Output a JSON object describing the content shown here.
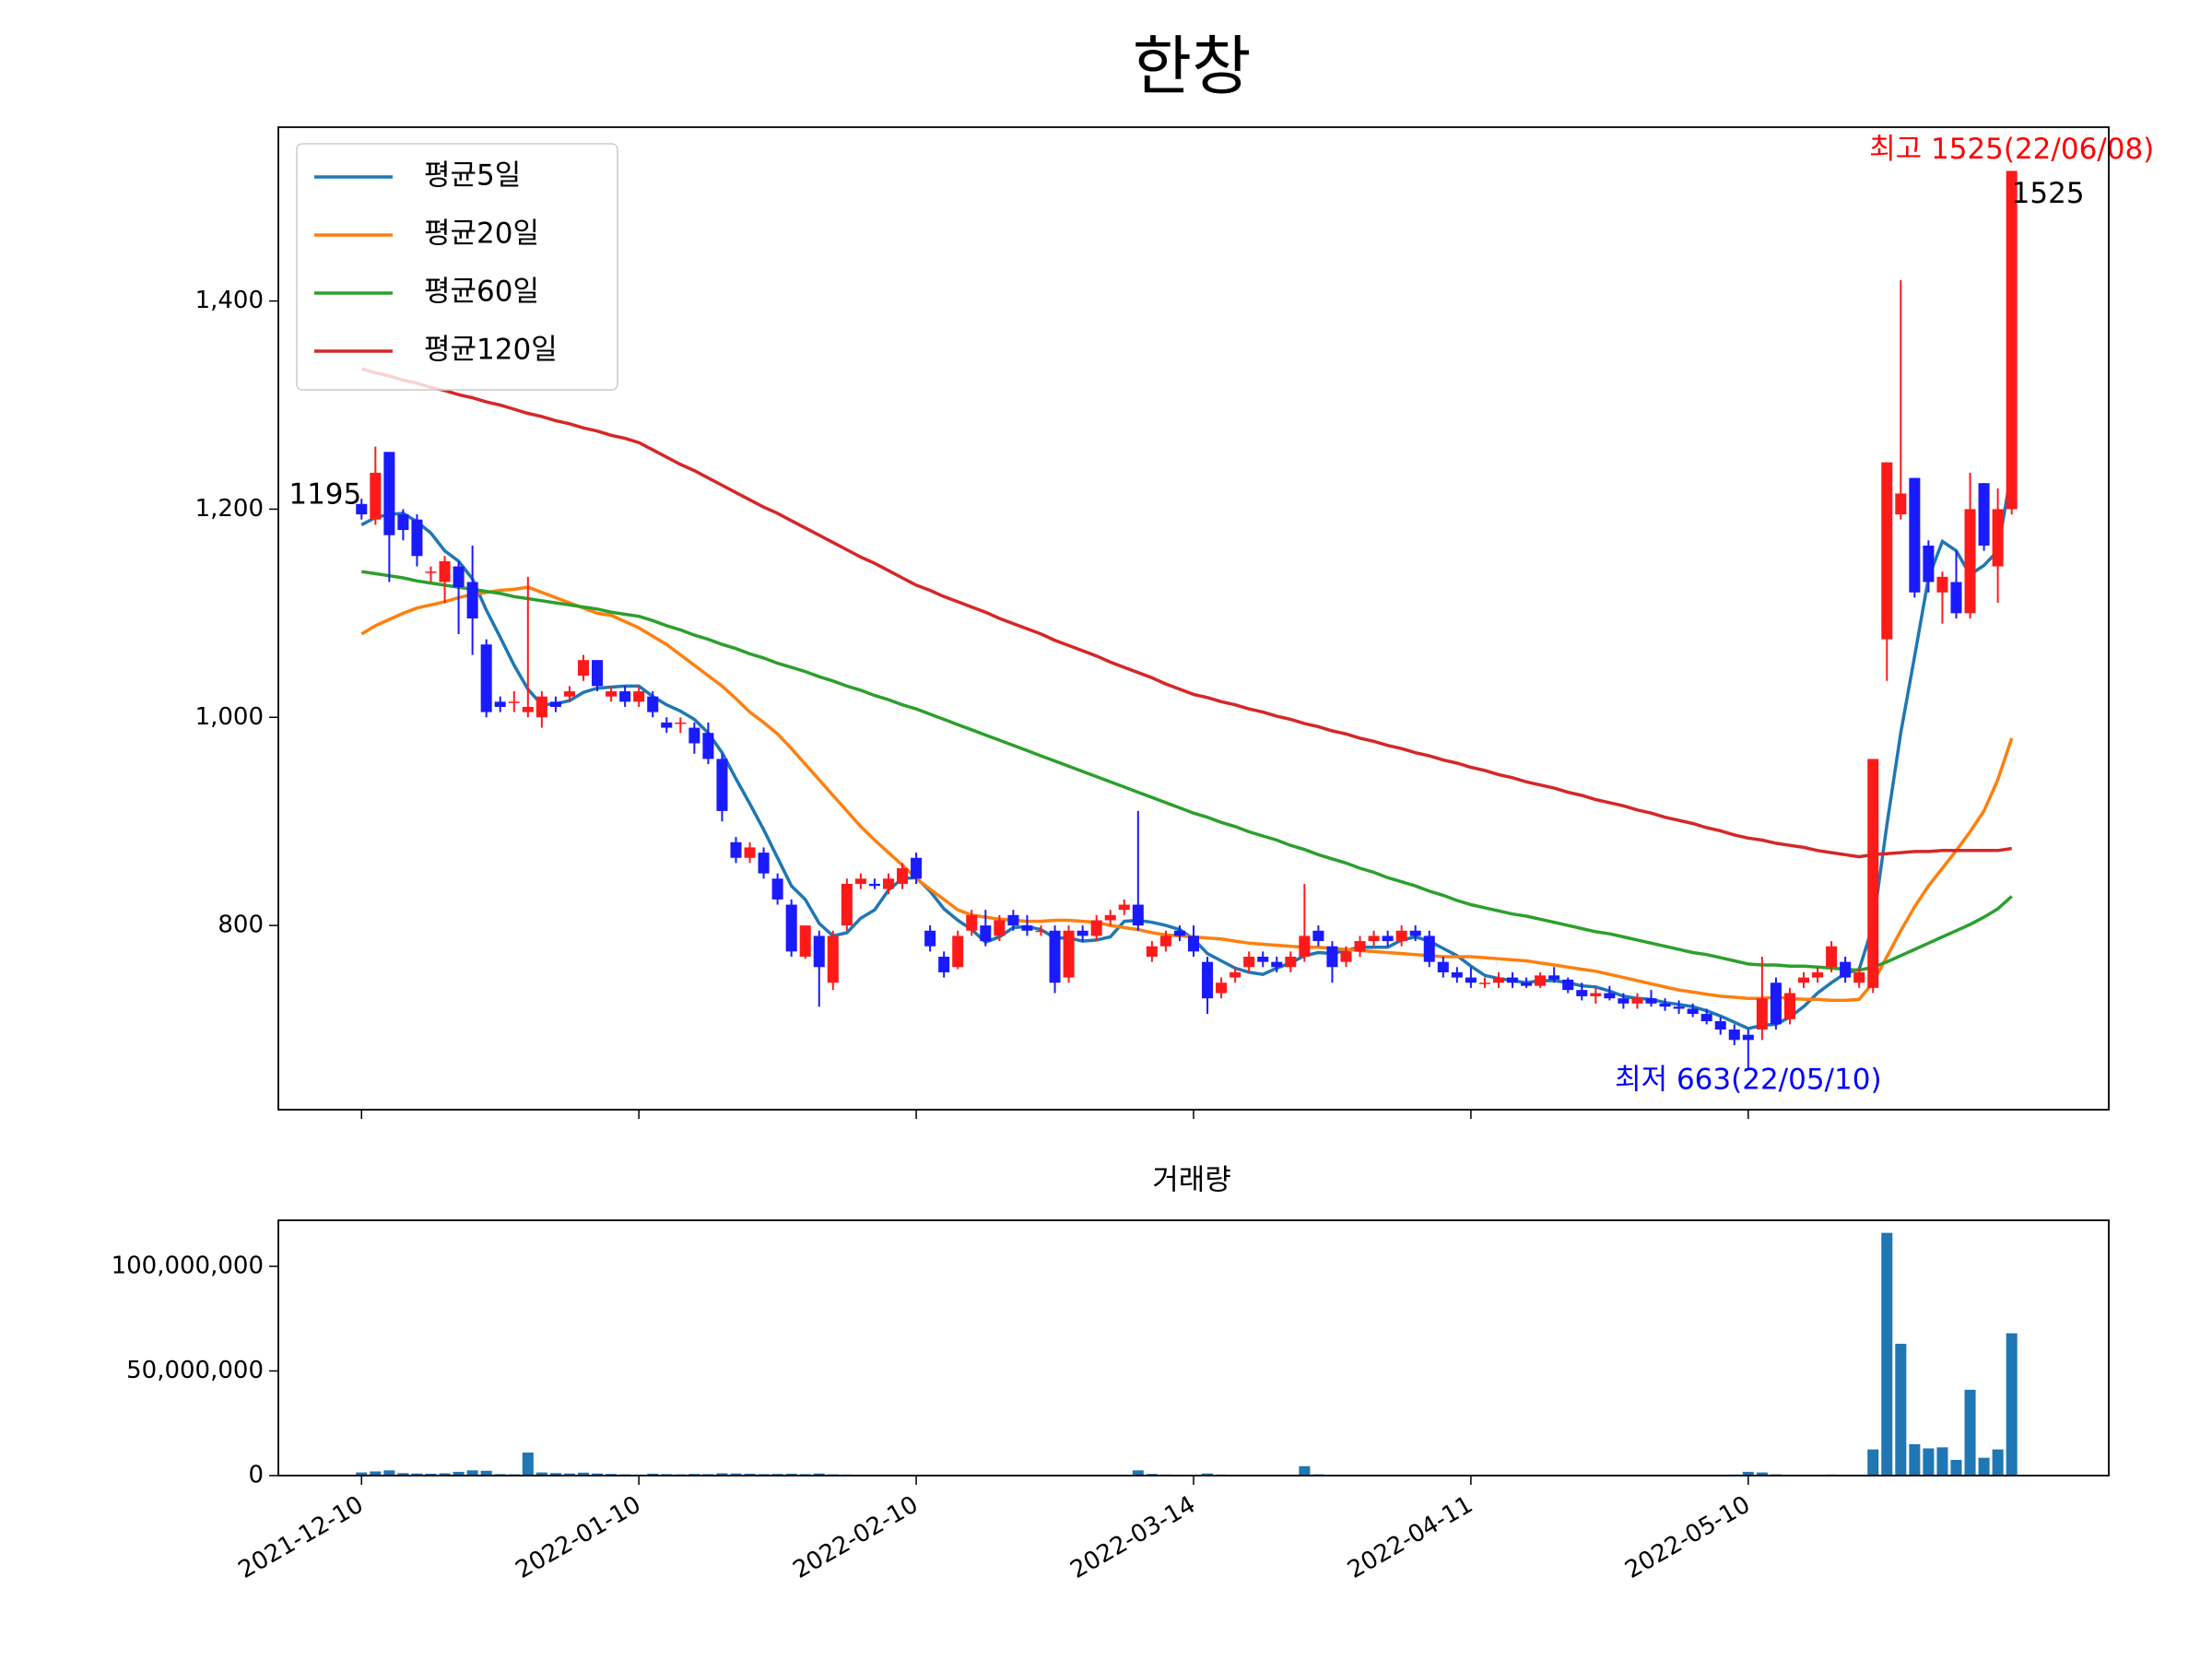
{
  "chart_data": {
    "type": "candlestick",
    "title": "한창",
    "categories": [
      "2021-12-10",
      null,
      null,
      null,
      null,
      null,
      null,
      null,
      null,
      null,
      null,
      null,
      null,
      null,
      null,
      null,
      null,
      null,
      null,
      null,
      "2022-01-10",
      null,
      null,
      null,
      null,
      null,
      null,
      null,
      null,
      null,
      null,
      null,
      null,
      null,
      null,
      null,
      null,
      null,
      null,
      null,
      "2022-02-10",
      null,
      null,
      null,
      null,
      null,
      null,
      null,
      null,
      null,
      null,
      null,
      null,
      null,
      null,
      null,
      null,
      null,
      null,
      null,
      "2022-03-14",
      null,
      null,
      null,
      null,
      null,
      null,
      null,
      null,
      null,
      null,
      null,
      null,
      null,
      null,
      null,
      null,
      null,
      null,
      null,
      "2022-04-11",
      null,
      null,
      null,
      null,
      null,
      null,
      null,
      null,
      null,
      null,
      null,
      null,
      null,
      null,
      null,
      null,
      null,
      null,
      null,
      "2022-05-10",
      null,
      null,
      null,
      null,
      null,
      null,
      null,
      null,
      null,
      null,
      null,
      null,
      null,
      null,
      null,
      null,
      null,
      null,
      null
    ],
    "open": [
      1205,
      1190,
      1255,
      1195,
      1190,
      1140,
      1130,
      1145,
      1130,
      1070,
      1015,
      1015,
      1005,
      1000,
      1015,
      1020,
      1040,
      1055,
      1020,
      1025,
      1015,
      1020,
      995,
      995,
      990,
      985,
      960,
      880,
      865,
      870,
      845,
      820,
      770,
      790,
      745,
      800,
      840,
      840,
      835,
      840,
      865,
      795,
      770,
      760,
      795,
      800,
      790,
      810,
      800,
      795,
      795,
      750,
      795,
      790,
      805,
      815,
      820,
      770,
      780,
      795,
      790,
      765,
      735,
      750,
      760,
      770,
      765,
      760,
      770,
      795,
      780,
      765,
      775,
      785,
      790,
      785,
      795,
      790,
      765,
      755,
      750,
      745,
      745,
      750,
      745,
      742,
      752,
      748,
      738,
      732,
      735,
      730,
      725,
      730,
      725,
      722,
      720,
      715,
      708,
      700,
      695,
      700,
      745,
      710,
      745,
      750,
      760,
      765,
      745,
      740,
      1075,
      1195,
      1230,
      1165,
      1120,
      1130,
      1100,
      1225,
      1145,
      1200
    ],
    "high": [
      1210,
      1260,
      1255,
      1200,
      1195,
      1145,
      1155,
      1150,
      1165,
      1075,
      1020,
      1025,
      1135,
      1025,
      1020,
      1030,
      1060,
      1055,
      1030,
      1030,
      1030,
      1025,
      1000,
      1000,
      995,
      995,
      965,
      885,
      880,
      875,
      850,
      825,
      800,
      795,
      795,
      845,
      850,
      845,
      850,
      860,
      870,
      800,
      775,
      795,
      815,
      815,
      810,
      815,
      810,
      800,
      800,
      800,
      800,
      810,
      815,
      825,
      910,
      785,
      795,
      800,
      800,
      770,
      750,
      760,
      775,
      775,
      770,
      775,
      840,
      800,
      785,
      780,
      790,
      795,
      795,
      800,
      800,
      795,
      770,
      760,
      760,
      750,
      755,
      755,
      750,
      755,
      760,
      750,
      745,
      740,
      742,
      735,
      735,
      738,
      730,
      728,
      725,
      720,
      712,
      705,
      700,
      770,
      750,
      740,
      755,
      760,
      785,
      770,
      760,
      960,
      1245,
      1420,
      1230,
      1170,
      1140,
      1160,
      1235,
      1225,
      1220,
      1525
    ],
    "low": [
      1190,
      1185,
      1130,
      1170,
      1145,
      1130,
      1110,
      1080,
      1060,
      1000,
      1005,
      1005,
      1000,
      990,
      1005,
      1015,
      1035,
      1025,
      1015,
      1010,
      1010,
      1000,
      985,
      985,
      965,
      955,
      900,
      860,
      860,
      845,
      820,
      770,
      768,
      722,
      738,
      795,
      835,
      835,
      830,
      835,
      840,
      775,
      750,
      758,
      790,
      780,
      785,
      795,
      790,
      790,
      735,
      745,
      785,
      785,
      800,
      810,
      795,
      765,
      775,
      785,
      770,
      715,
      730,
      745,
      755,
      760,
      755,
      755,
      765,
      780,
      745,
      760,
      770,
      780,
      780,
      780,
      785,
      760,
      750,
      745,
      740,
      740,
      740,
      740,
      740,
      740,
      745,
      735,
      728,
      725,
      728,
      720,
      720,
      722,
      718,
      715,
      712,
      705,
      695,
      685,
      663,
      690,
      700,
      705,
      740,
      745,
      755,
      745,
      740,
      735,
      1035,
      1190,
      1115,
      1120,
      1090,
      1095,
      1095,
      1160,
      1110,
      1195
    ],
    "close": [
      1195,
      1235,
      1175,
      1180,
      1155,
      1140,
      1150,
      1125,
      1095,
      1005,
      1010,
      1015,
      1010,
      1020,
      1010,
      1025,
      1055,
      1030,
      1025,
      1015,
      1025,
      1005,
      990,
      995,
      975,
      960,
      910,
      865,
      875,
      850,
      825,
      775,
      800,
      760,
      790,
      840,
      845,
      838,
      845,
      855,
      845,
      780,
      755,
      790,
      810,
      785,
      805,
      800,
      795,
      795,
      745,
      795,
      790,
      805,
      810,
      820,
      800,
      780,
      790,
      790,
      775,
      730,
      745,
      755,
      770,
      765,
      760,
      770,
      790,
      785,
      760,
      775,
      785,
      790,
      785,
      795,
      790,
      765,
      755,
      750,
      745,
      745,
      750,
      745,
      742,
      752,
      748,
      738,
      732,
      735,
      730,
      725,
      730,
      725,
      722,
      720,
      715,
      708,
      700,
      690,
      690,
      730,
      705,
      735,
      750,
      755,
      780,
      750,
      755,
      960,
      1245,
      1215,
      1120,
      1130,
      1135,
      1100,
      1200,
      1165,
      1200,
      1525
    ],
    "up_color": "#ff1a1a",
    "down_color": "#1a1aff",
    "ylim": [
      623,
      1567
    ],
    "yticks": [
      800,
      {
        "value": 1000,
        "label": "1,000"
      },
      {
        "value": 1200,
        "label": "1,200"
      },
      {
        "value": 1400,
        "label": "1,400"
      }
    ],
    "legend": "upper left",
    "series": [
      {
        "name": "평균5일",
        "color": "#1f77b4",
        "values": [
          1185,
          1192,
          1195,
          1196,
          1188,
          1177,
          1160,
          1150,
          1133,
          1103,
          1077,
          1050,
          1027,
          1012,
          1013,
          1016,
          1024,
          1028,
          1029,
          1030,
          1030,
          1020,
          1012,
          1006,
          998,
          985,
          966,
          941,
          917,
          892,
          865,
          838,
          825,
          802,
          790,
          793,
          807,
          815,
          834,
          845,
          846,
          833,
          816,
          805,
          796,
          784,
          789,
          798,
          799,
          796,
          788,
          788,
          785,
          786,
          789,
          804,
          805,
          803,
          800,
          796,
          787,
          773,
          766,
          759,
          755,
          753,
          759,
          764,
          771,
          774,
          773,
          776,
          779,
          779,
          779,
          786,
          789,
          785,
          778,
          771,
          761,
          752,
          749,
          747,
          745,
          747,
          747,
          745,
          742,
          741,
          737,
          732,
          730,
          729,
          726,
          724,
          722,
          718,
          713,
          707,
          701,
          704,
          705,
          712,
          722,
          735,
          745,
          754,
          758,
          800,
          897,
          985,
          1059,
          1134,
          1169,
          1160,
          1137,
          1146,
          1160,
          1238
        ]
      },
      {
        "name": "평균20일",
        "color": "#ff7f0e",
        "values": [
          1080,
          1088,
          1094,
          1100,
          1105,
          1108,
          1111,
          1115,
          1118,
          1120,
          1122,
          1123,
          1125,
          1120,
          1115,
          1110,
          1105,
          1100,
          1098,
          1092,
          1086,
          1078,
          1070,
          1060,
          1050,
          1040,
          1030,
          1018,
          1005,
          995,
          984,
          970,
          955,
          940,
          925,
          910,
          895,
          882,
          870,
          858,
          845,
          835,
          825,
          815,
          810,
          808,
          806,
          805,
          804,
          804,
          805,
          805,
          804,
          803,
          800,
          798,
          796,
          793,
          791,
          790,
          789,
          788,
          787,
          785,
          783,
          782,
          781,
          780,
          779,
          779,
          778,
          777,
          776,
          775,
          774,
          773,
          772,
          771,
          770,
          770,
          770,
          769,
          768,
          767,
          766,
          764,
          762,
          760,
          758,
          756,
          753,
          750,
          747,
          744,
          741,
          738,
          736,
          734,
          732,
          731,
          730,
          730,
          731,
          730,
          729,
          729,
          728,
          728,
          729,
          745,
          770,
          795,
          818,
          838,
          855,
          872,
          890,
          910,
          940,
          980
        ]
      },
      {
        "name": "평균60일",
        "color": "#2ca02c",
        "values": [
          1140,
          1138,
          1136,
          1134,
          1131,
          1129,
          1127,
          1125,
          1123,
          1121,
          1119,
          1116,
          1114,
          1112,
          1110,
          1108,
          1106,
          1104,
          1101,
          1099,
          1097,
          1093,
          1088,
          1084,
          1079,
          1075,
          1070,
          1066,
          1061,
          1057,
          1052,
          1048,
          1044,
          1039,
          1035,
          1030,
          1026,
          1021,
          1017,
          1012,
          1008,
          1003,
          998,
          993,
          988,
          983,
          978,
          973,
          968,
          963,
          958,
          953,
          948,
          943,
          938,
          933,
          928,
          923,
          918,
          913,
          908,
          904,
          899,
          895,
          890,
          886,
          882,
          877,
          873,
          868,
          864,
          860,
          855,
          851,
          846,
          842,
          838,
          833,
          829,
          824,
          820,
          817,
          814,
          811,
          809,
          806,
          803,
          800,
          797,
          794,
          792,
          789,
          786,
          783,
          780,
          777,
          774,
          772,
          769,
          766,
          763,
          762,
          762,
          761,
          761,
          760,
          759,
          758,
          757,
          760,
          765,
          771,
          777,
          783,
          789,
          795,
          801,
          808,
          816,
          828
        ]
      },
      {
        "name": "평균120일",
        "color": "#d62728",
        "values": [
          1335,
          1331,
          1328,
          1324,
          1321,
          1317,
          1314,
          1310,
          1307,
          1303,
          1300,
          1296,
          1292,
          1289,
          1285,
          1282,
          1278,
          1275,
          1271,
          1268,
          1264,
          1257,
          1250,
          1243,
          1237,
          1230,
          1223,
          1216,
          1209,
          1202,
          1196,
          1189,
          1182,
          1175,
          1168,
          1161,
          1154,
          1148,
          1141,
          1134,
          1127,
          1122,
          1116,
          1111,
          1106,
          1101,
          1095,
          1090,
          1085,
          1080,
          1074,
          1069,
          1064,
          1059,
          1053,
          1048,
          1043,
          1038,
          1032,
          1027,
          1022,
          1019,
          1015,
          1012,
          1008,
          1005,
          1001,
          998,
          994,
          991,
          987,
          984,
          980,
          977,
          973,
          970,
          966,
          963,
          959,
          956,
          952,
          949,
          945,
          942,
          938,
          935,
          932,
          928,
          925,
          921,
          918,
          915,
          911,
          908,
          904,
          901,
          898,
          894,
          891,
          887,
          884,
          882,
          879,
          877,
          875,
          872,
          870,
          868,
          866,
          868,
          869,
          870,
          871,
          871,
          872,
          872,
          872,
          872,
          872,
          874
        ]
      }
    ],
    "annotations": {
      "max": "최고 1525(22/06/08)",
      "min": "최저 663(22/05/10)",
      "max_color": "#ff0000",
      "min_color": "#0000ff"
    },
    "volume": {
      "type": "bar",
      "title": "거래량",
      "color": "#1f77b4",
      "values": [
        1500000,
        2000000,
        2500000,
        1200000,
        1000000,
        900000,
        1100000,
        1800000,
        2500000,
        2300000,
        700000,
        600000,
        11000000,
        1500000,
        1200000,
        1000000,
        1400000,
        1000000,
        800000,
        600000,
        500000,
        900000,
        700000,
        600000,
        800000,
        700000,
        1100000,
        1000000,
        900000,
        700000,
        800000,
        900000,
        700000,
        1000000,
        600000,
        500000,
        400000,
        400000,
        300000,
        300000,
        400000,
        300000,
        300000,
        300000,
        400000,
        300000,
        300000,
        300000,
        300000,
        300000,
        400000,
        300000,
        300000,
        300000,
        300000,
        300000,
        2500000,
        800000,
        500000,
        400000,
        400000,
        1000000,
        500000,
        400000,
        300000,
        300000,
        300000,
        300000,
        4500000,
        600000,
        400000,
        300000,
        300000,
        300000,
        300000,
        300000,
        300000,
        300000,
        300000,
        300000,
        300000,
        300000,
        300000,
        300000,
        300000,
        300000,
        300000,
        300000,
        300000,
        300000,
        300000,
        300000,
        300000,
        300000,
        300000,
        300000,
        300000,
        300000,
        400000,
        500000,
        1800000,
        1500000,
        600000,
        400000,
        400000,
        400000,
        500000,
        400000,
        400000,
        12500000,
        116000000,
        63000000,
        15000000,
        13000000,
        13500000,
        7500000,
        41000000,
        8500000,
        12500000,
        68000000
      ],
      "ylim": [
        0,
        122000000
      ],
      "yticks": [
        0,
        {
          "value": 50000000,
          "label": "50,000,000"
        },
        {
          "value": 100000000,
          "label": "100,000,000"
        }
      ]
    }
  }
}
